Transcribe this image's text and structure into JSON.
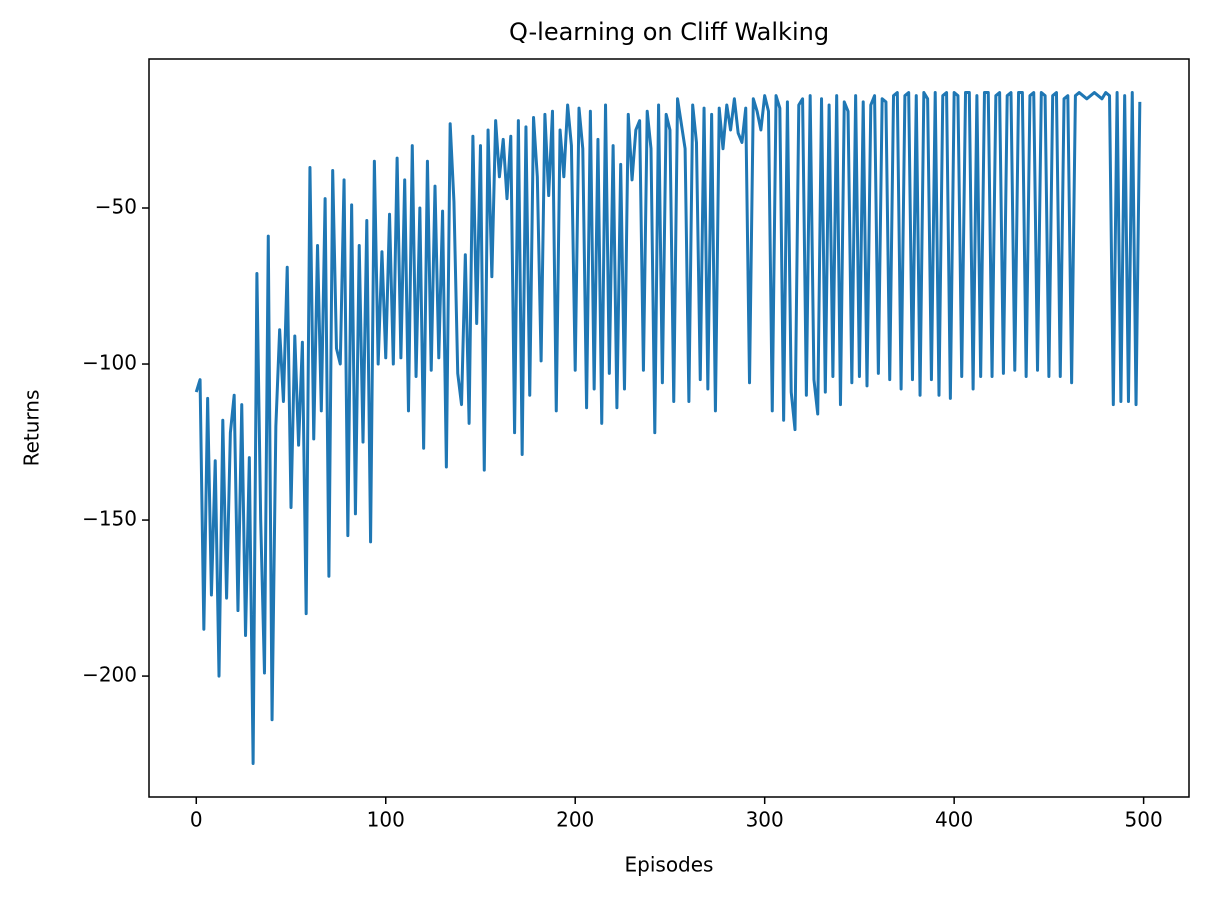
{
  "chart_data": {
    "type": "line",
    "title": "Q-learning on Cliff Walking",
    "x_label": "Episodes",
    "y_label": "Returns",
    "x": [
      0,
      2,
      4,
      6,
      8,
      10,
      12,
      14,
      16,
      18,
      20,
      22,
      24,
      26,
      28,
      30,
      32,
      34,
      36,
      38,
      40,
      42,
      44,
      46,
      48,
      50,
      52,
      54,
      56,
      58,
      60,
      62,
      64,
      66,
      68,
      70,
      72,
      74,
      76,
      78,
      80,
      82,
      84,
      86,
      88,
      90,
      92,
      94,
      96,
      98,
      100,
      102,
      104,
      106,
      108,
      110,
      112,
      114,
      116,
      118,
      120,
      122,
      124,
      126,
      128,
      130,
      132,
      134,
      136,
      138,
      140,
      142,
      144,
      146,
      148,
      150,
      152,
      154,
      156,
      158,
      160,
      162,
      164,
      166,
      168,
      170,
      172,
      174,
      176,
      178,
      180,
      182,
      184,
      186,
      188,
      190,
      192,
      194,
      196,
      198,
      200,
      202,
      204,
      206,
      208,
      210,
      212,
      214,
      216,
      218,
      220,
      222,
      224,
      226,
      228,
      230,
      232,
      234,
      236,
      238,
      240,
      242,
      244,
      246,
      248,
      250,
      252,
      254,
      256,
      258,
      260,
      262,
      264,
      266,
      268,
      270,
      272,
      274,
      276,
      278,
      280,
      282,
      284,
      286,
      288,
      290,
      292,
      294,
      296,
      298,
      300,
      302,
      304,
      306,
      308,
      310,
      312,
      314,
      316,
      318,
      320,
      322,
      324,
      326,
      328,
      330,
      332,
      334,
      336,
      338,
      340,
      342,
      344,
      346,
      348,
      350,
      352,
      354,
      356,
      358,
      360,
      362,
      364,
      366,
      368,
      370,
      372,
      374,
      376,
      378,
      380,
      382,
      384,
      386,
      388,
      390,
      392,
      394,
      396,
      398,
      400,
      402,
      404,
      406,
      408,
      410,
      412,
      414,
      416,
      418,
      420,
      422,
      424,
      426,
      428,
      430,
      432,
      434,
      436,
      438,
      440,
      442,
      444,
      446,
      448,
      450,
      452,
      454,
      456,
      458,
      460,
      462,
      464,
      466,
      468,
      470,
      472,
      474,
      476,
      478,
      480,
      482,
      484,
      486,
      488,
      490,
      492,
      494,
      496,
      498
    ],
    "series": [
      {
        "name": "Returns",
        "color": "#1f77b4",
        "values": [
          -109,
          -105,
          -185,
          -111,
          -174,
          -131,
          -200,
          -118,
          -175,
          -122,
          -110,
          -179,
          -113,
          -187,
          -130,
          -228,
          -71,
          -150,
          -199,
          -59,
          -214,
          -120,
          -89,
          -112,
          -69,
          -146,
          -91,
          -126,
          -93,
          -180,
          -37,
          -124,
          -62,
          -115,
          -47,
          -168,
          -38,
          -95,
          -100,
          -41,
          -155,
          -49,
          -148,
          -62,
          -125,
          -54,
          -157,
          -35,
          -100,
          -64,
          -98,
          -52,
          -100,
          -34,
          -98,
          -41,
          -115,
          -30,
          -104,
          -50,
          -127,
          -35,
          -102,
          -43,
          -98,
          -51,
          -133,
          -23,
          -48,
          -103,
          -113,
          -65,
          -119,
          -27,
          -87,
          -30,
          -134,
          -25,
          -72,
          -22,
          -40,
          -28,
          -47,
          -27,
          -122,
          -22,
          -129,
          -24,
          -110,
          -21,
          -40,
          -99,
          -20,
          -46,
          -19,
          -115,
          -25,
          -40,
          -17,
          -30,
          -102,
          -18,
          -31,
          -114,
          -19,
          -108,
          -28,
          -119,
          -17,
          -103,
          -30,
          -114,
          -36,
          -108,
          -20,
          -41,
          -25,
          -22,
          -102,
          -19,
          -31,
          -122,
          -17,
          -106,
          -20,
          -25,
          -112,
          -15,
          -23,
          -31,
          -112,
          -17,
          -29,
          -105,
          -18,
          -108,
          -20,
          -115,
          -18,
          -31,
          -17,
          -25,
          -15,
          -26,
          -29,
          -18,
          -106,
          -15,
          -19,
          -25,
          -14,
          -19,
          -115,
          -14,
          -18,
          -118,
          -16,
          -109,
          -121,
          -17,
          -15,
          -110,
          -14,
          -105,
          -116,
          -15,
          -109,
          -17,
          -104,
          -14,
          -113,
          -16,
          -19,
          -106,
          -14,
          -104,
          -16,
          -107,
          -17,
          -14,
          -103,
          -15,
          -16,
          -105,
          -14,
          -13,
          -108,
          -14,
          -13,
          -105,
          -14,
          -110,
          -13,
          -15,
          -105,
          -13,
          -110,
          -14,
          -13,
          -111,
          -13,
          -14,
          -104,
          -13,
          -13,
          -108,
          -14,
          -104,
          -13,
          -13,
          -104,
          -14,
          -13,
          -103,
          -14,
          -13,
          -102,
          -13,
          -13,
          -104,
          -14,
          -13,
          -102,
          -13,
          -14,
          -104,
          -14,
          -13,
          -104,
          -15,
          -14,
          -106,
          -14,
          -13,
          -14,
          -15,
          -14,
          -13,
          -14,
          -15,
          -13,
          -14,
          -113,
          -13,
          -112,
          -14,
          -112,
          -13,
          -113,
          -16
        ]
      }
    ],
    "xlim": [
      -24.95,
      523.95
    ],
    "ylim": [
      -238.75,
      -2.25
    ],
    "xticks": [
      0,
      100,
      200,
      300,
      400,
      500
    ],
    "yticks": [
      {
        "value": -50,
        "label": "−50"
      },
      {
        "value": -100,
        "label": "−100"
      },
      {
        "value": -150,
        "label": "−150"
      },
      {
        "value": -200,
        "label": "−200"
      }
    ]
  }
}
